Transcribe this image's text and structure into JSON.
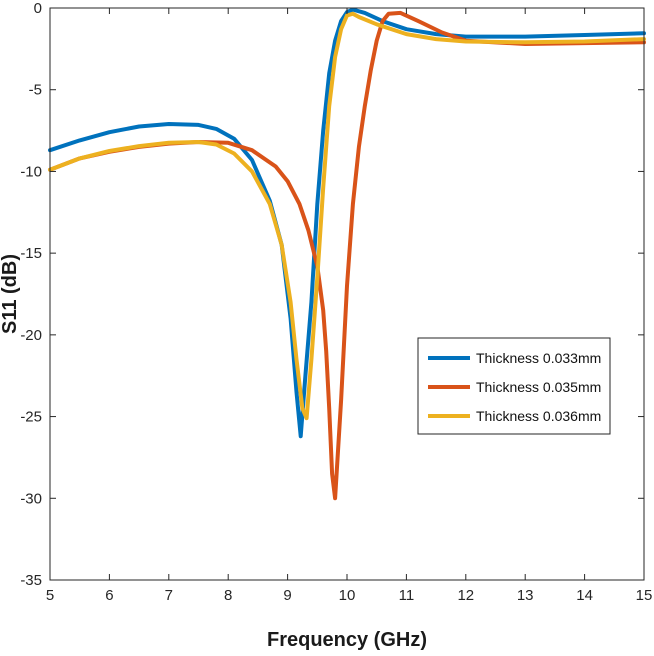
{
  "chart_data": {
    "type": "line",
    "title": "",
    "xlabel": "Frequency (GHz)",
    "ylabel": "S11 (dB)",
    "xlim": [
      5,
      15
    ],
    "ylim": [
      -35,
      0
    ],
    "xticks": [
      5,
      6,
      7,
      8,
      9,
      10,
      11,
      12,
      13,
      14,
      15
    ],
    "yticks": [
      0,
      -5,
      -10,
      -15,
      -20,
      -25,
      -30,
      -35
    ],
    "grid": false,
    "legend_position": "center-right",
    "series": [
      {
        "name": "Thickness 0.033mm",
        "color": "#0072BD",
        "x": [
          5.0,
          5.5,
          6.0,
          6.5,
          7.0,
          7.5,
          7.8,
          8.1,
          8.4,
          8.7,
          8.9,
          9.05,
          9.15,
          9.22,
          9.3,
          9.4,
          9.5,
          9.6,
          9.7,
          9.8,
          9.9,
          10.0,
          10.1,
          10.3,
          10.6,
          11.0,
          11.5,
          12.0,
          13.0,
          14.0,
          15.0
        ],
        "y": [
          -8.7,
          -8.1,
          -7.6,
          -7.25,
          -7.1,
          -7.15,
          -7.4,
          -8.0,
          -9.3,
          -11.8,
          -14.5,
          -19.0,
          -23.5,
          -26.2,
          -22.5,
          -18.0,
          -12.0,
          -7.5,
          -4.0,
          -2.0,
          -0.8,
          -0.25,
          -0.1,
          -0.3,
          -0.8,
          -1.3,
          -1.6,
          -1.75,
          -1.75,
          -1.65,
          -1.55
        ]
      },
      {
        "name": "Thickness 0.035mm",
        "color": "#D95319",
        "x": [
          5.0,
          5.5,
          6.0,
          6.5,
          7.0,
          7.5,
          8.0,
          8.4,
          8.8,
          9.0,
          9.2,
          9.35,
          9.5,
          9.6,
          9.65,
          9.7,
          9.75,
          9.8,
          9.9,
          10.0,
          10.1,
          10.2,
          10.3,
          10.4,
          10.5,
          10.6,
          10.7,
          10.9,
          11.2,
          11.6,
          12.0,
          13.0,
          14.0,
          15.0
        ],
        "y": [
          -9.9,
          -9.2,
          -8.8,
          -8.5,
          -8.3,
          -8.2,
          -8.25,
          -8.7,
          -9.7,
          -10.6,
          -12.0,
          -13.6,
          -15.8,
          -18.5,
          -21.0,
          -24.5,
          -28.5,
          -30.0,
          -24.0,
          -17.0,
          -12.0,
          -8.5,
          -6.0,
          -3.8,
          -2.0,
          -0.8,
          -0.35,
          -0.3,
          -0.8,
          -1.5,
          -2.0,
          -2.2,
          -2.15,
          -2.1
        ]
      },
      {
        "name": "Thickness 0.036mm",
        "color": "#EDB120",
        "x": [
          5.0,
          5.5,
          6.0,
          6.5,
          7.0,
          7.5,
          7.8,
          8.1,
          8.4,
          8.7,
          8.9,
          9.05,
          9.15,
          9.25,
          9.32,
          9.4,
          9.5,
          9.6,
          9.7,
          9.8,
          9.9,
          10.0,
          10.1,
          10.2,
          10.5,
          11.0,
          11.5,
          12.0,
          13.0,
          14.0,
          15.0
        ],
        "y": [
          -9.9,
          -9.2,
          -8.75,
          -8.45,
          -8.25,
          -8.2,
          -8.35,
          -8.9,
          -10.0,
          -12.0,
          -14.5,
          -18.0,
          -21.5,
          -24.5,
          -25.1,
          -21.5,
          -16.5,
          -11.0,
          -6.0,
          -3.0,
          -1.3,
          -0.45,
          -0.35,
          -0.55,
          -1.0,
          -1.6,
          -1.9,
          -2.05,
          -2.1,
          -2.05,
          -1.9
        ]
      }
    ]
  }
}
